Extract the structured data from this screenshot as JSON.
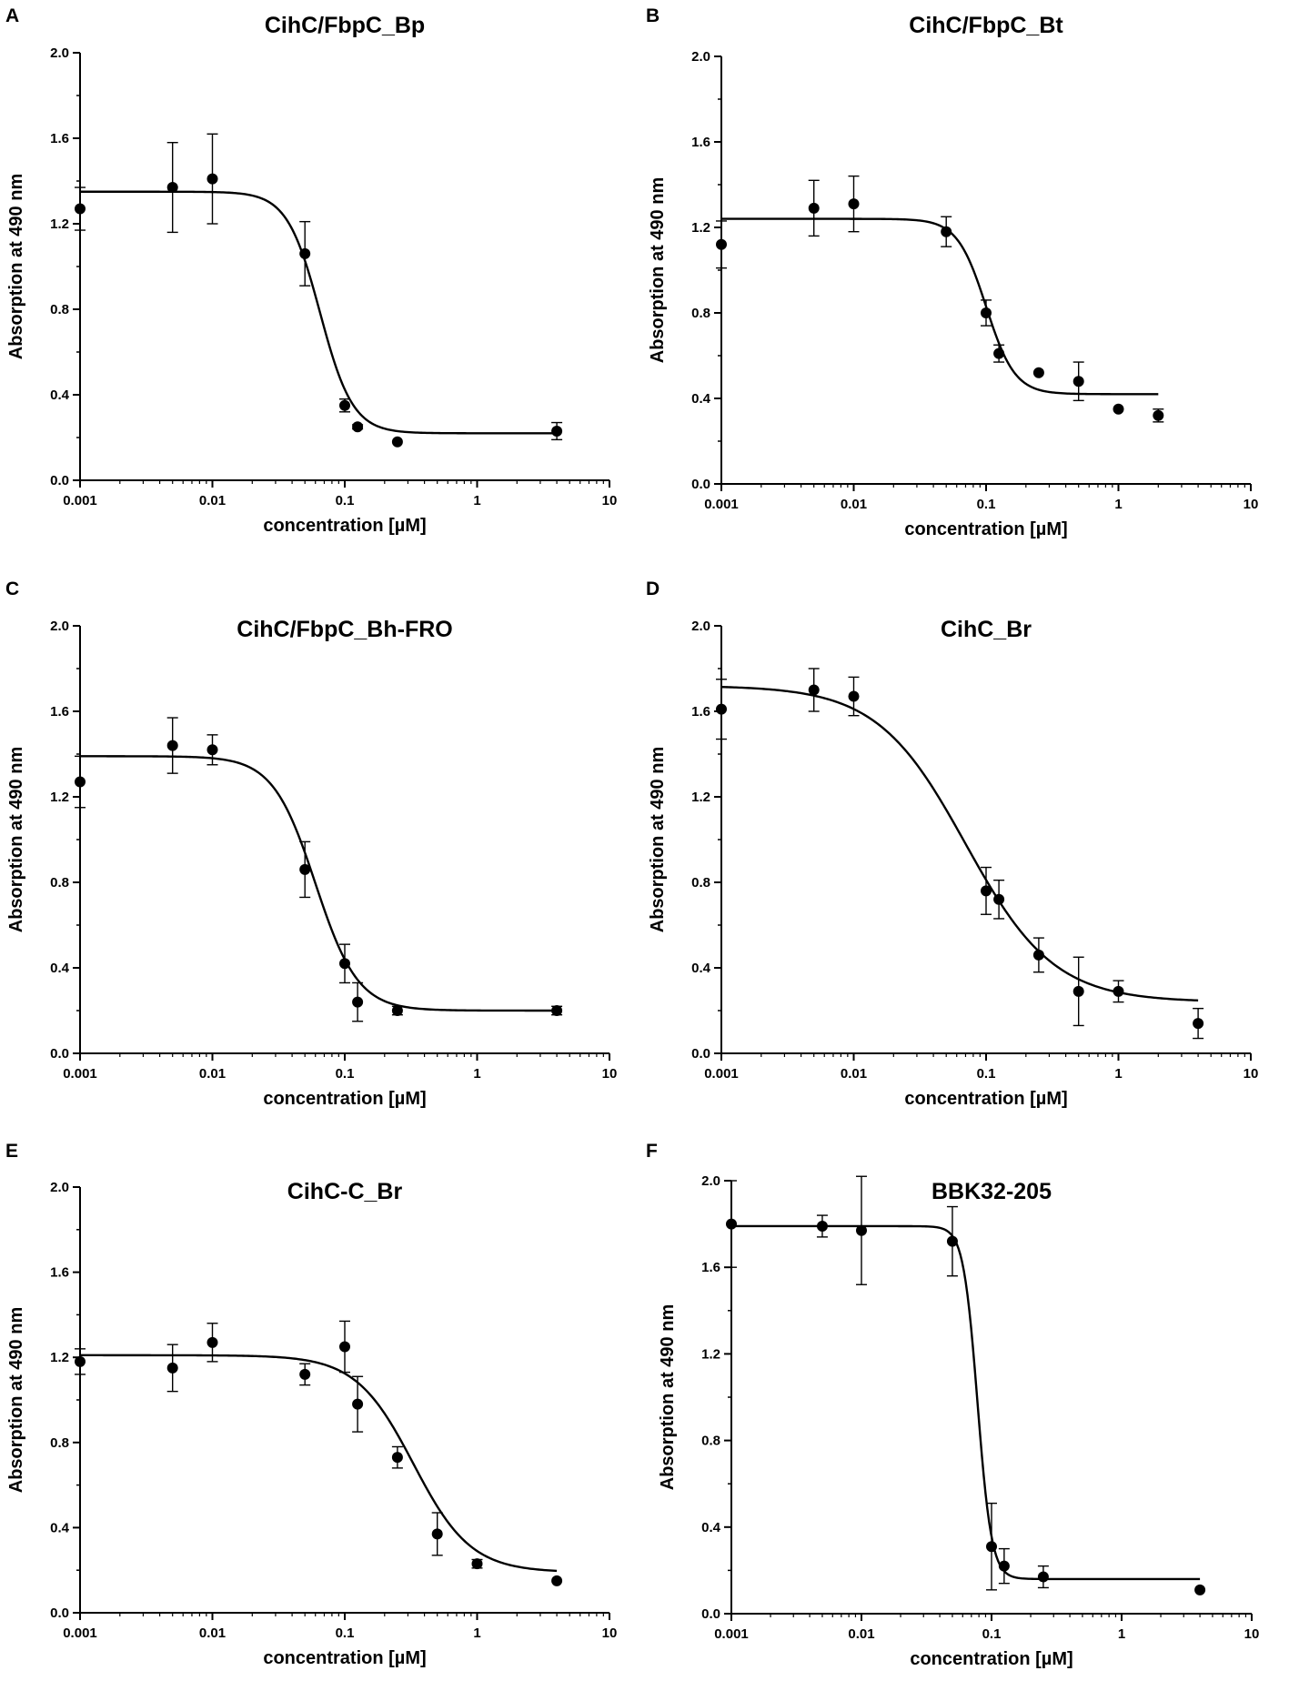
{
  "chart_data": [
    {
      "type": "scatter",
      "panel": "A",
      "title": "CihC/FbpC_Bp",
      "xlabel": "concentration [µM]",
      "ylabel": "Absorption at 490 nm",
      "xscale": "log",
      "xlim": [
        0.001,
        10
      ],
      "ylim": [
        0.0,
        2.0
      ],
      "x_ticks": [
        0.001,
        0.01,
        0.1,
        1,
        10
      ],
      "x_tick_labels": [
        "0.001",
        "0.01",
        "0.1",
        "1",
        "10"
      ],
      "y_ticks": [
        0.0,
        0.4,
        0.8,
        1.2,
        1.6,
        2.0
      ],
      "y_tick_labels": [
        "0.0",
        "0.4",
        "0.8",
        "1.2",
        "1.6",
        "2.0"
      ],
      "points": [
        {
          "x": 0.001,
          "y": 1.27,
          "err": 0.1
        },
        {
          "x": 0.005,
          "y": 1.37,
          "err": 0.21
        },
        {
          "x": 0.01,
          "y": 1.41,
          "err": 0.21
        },
        {
          "x": 0.05,
          "y": 1.06,
          "err": 0.15
        },
        {
          "x": 0.1,
          "y": 0.35,
          "err": 0.03
        },
        {
          "x": 0.125,
          "y": 0.25,
          "err": 0.01
        },
        {
          "x": 0.25,
          "y": 0.18,
          "err": 0.0
        },
        {
          "x": 4,
          "y": 0.23,
          "err": 0.04
        }
      ],
      "fit": {
        "bottom": 0.22,
        "top": 1.35,
        "ec50": 0.065,
        "hill": 3.5,
        "x_range": [
          0.001,
          4
        ]
      }
    },
    {
      "type": "scatter",
      "panel": "B",
      "title": "CihC/FbpC_Bt",
      "xlabel": "concentration [µM]",
      "ylabel": "Absorption at 490 nm",
      "xscale": "log",
      "xlim": [
        0.001,
        10
      ],
      "ylim": [
        0.0,
        2.0
      ],
      "x_ticks": [
        0.001,
        0.01,
        0.1,
        1,
        10
      ],
      "x_tick_labels": [
        "0.001",
        "0.01",
        "0.1",
        "1",
        "10"
      ],
      "y_ticks": [
        0.0,
        0.4,
        0.8,
        1.2,
        1.6,
        2.0
      ],
      "y_tick_labels": [
        "0.0",
        "0.4",
        "0.8",
        "1.2",
        "1.6",
        "2.0"
      ],
      "points": [
        {
          "x": 0.001,
          "y": 1.12,
          "err": 0.11
        },
        {
          "x": 0.005,
          "y": 1.29,
          "err": 0.13
        },
        {
          "x": 0.01,
          "y": 1.31,
          "err": 0.13
        },
        {
          "x": 0.05,
          "y": 1.18,
          "err": 0.07
        },
        {
          "x": 0.1,
          "y": 0.8,
          "err": 0.06
        },
        {
          "x": 0.125,
          "y": 0.61,
          "err": 0.04
        },
        {
          "x": 0.25,
          "y": 0.52,
          "err": 0.0
        },
        {
          "x": 0.5,
          "y": 0.48,
          "err": 0.09
        },
        {
          "x": 1,
          "y": 0.35,
          "err": 0.0
        },
        {
          "x": 2,
          "y": 0.32,
          "err": 0.03
        }
      ],
      "fit": {
        "bottom": 0.42,
        "top": 1.24,
        "ec50": 0.1,
        "hill": 4.0,
        "x_range": [
          0.001,
          2
        ]
      }
    },
    {
      "type": "scatter",
      "panel": "C",
      "title": "CihC/FbpC_Bh-FRO",
      "xlabel": "concentration [µM]",
      "ylabel": "Absorption at 490 nm",
      "xscale": "log",
      "xlim": [
        0.001,
        10
      ],
      "ylim": [
        0.0,
        2.0
      ],
      "x_ticks": [
        0.001,
        0.01,
        0.1,
        1,
        10
      ],
      "x_tick_labels": [
        "0.001",
        "0.01",
        "0.1",
        "1",
        "10"
      ],
      "y_ticks": [
        0.0,
        0.4,
        0.8,
        1.2,
        1.6,
        2.0
      ],
      "y_tick_labels": [
        "0.0",
        "0.4",
        "0.8",
        "1.2",
        "1.6",
        "2.0"
      ],
      "points": [
        {
          "x": 0.001,
          "y": 1.27,
          "err": 0.12
        },
        {
          "x": 0.005,
          "y": 1.44,
          "err": 0.13
        },
        {
          "x": 0.01,
          "y": 1.42,
          "err": 0.07
        },
        {
          "x": 0.05,
          "y": 0.86,
          "err": 0.13
        },
        {
          "x": 0.1,
          "y": 0.42,
          "err": 0.09
        },
        {
          "x": 0.125,
          "y": 0.24,
          "err": 0.09
        },
        {
          "x": 0.25,
          "y": 0.2,
          "err": 0.02
        },
        {
          "x": 4,
          "y": 0.2,
          "err": 0.02
        }
      ],
      "fit": {
        "bottom": 0.2,
        "top": 1.39,
        "ec50": 0.06,
        "hill": 2.7,
        "x_range": [
          0.001,
          4
        ]
      }
    },
    {
      "type": "scatter",
      "panel": "D",
      "title": "CihC_Br",
      "xlabel": "concentration [µM]",
      "ylabel": "Absorption at 490 nm",
      "xscale": "log",
      "xlim": [
        0.001,
        10
      ],
      "ylim": [
        0.0,
        2.0
      ],
      "x_ticks": [
        0.001,
        0.01,
        0.1,
        1,
        10
      ],
      "x_tick_labels": [
        "0.001",
        "0.01",
        "0.1",
        "1",
        "10"
      ],
      "y_ticks": [
        0.0,
        0.4,
        0.8,
        1.2,
        1.6,
        2.0
      ],
      "y_tick_labels": [
        "0.0",
        "0.4",
        "0.8",
        "1.2",
        "1.6",
        "2.0"
      ],
      "points": [
        {
          "x": 0.001,
          "y": 1.61,
          "err": 0.14
        },
        {
          "x": 0.005,
          "y": 1.7,
          "err": 0.1
        },
        {
          "x": 0.01,
          "y": 1.67,
          "err": 0.09
        },
        {
          "x": 0.1,
          "y": 0.76,
          "err": 0.11
        },
        {
          "x": 0.125,
          "y": 0.72,
          "err": 0.09
        },
        {
          "x": 0.25,
          "y": 0.46,
          "err": 0.08
        },
        {
          "x": 0.5,
          "y": 0.29,
          "err": 0.16
        },
        {
          "x": 1,
          "y": 0.29,
          "err": 0.05
        },
        {
          "x": 4,
          "y": 0.14,
          "err": 0.07
        }
      ],
      "fit": {
        "bottom": 0.24,
        "top": 1.72,
        "ec50": 0.07,
        "hill": 1.3,
        "x_range": [
          0.001,
          4
        ]
      }
    },
    {
      "type": "scatter",
      "panel": "E",
      "title": "CihC-C_Br",
      "xlabel": "concentration [µM]",
      "ylabel": "Absorption at 490 nm",
      "xscale": "log",
      "xlim": [
        0.001,
        10
      ],
      "ylim": [
        0.0,
        2.0
      ],
      "x_ticks": [
        0.001,
        0.01,
        0.1,
        1,
        10
      ],
      "x_tick_labels": [
        "0.001",
        "0.01",
        "0.1",
        "1",
        "10"
      ],
      "y_ticks": [
        0.0,
        0.4,
        0.8,
        1.2,
        1.6,
        2.0
      ],
      "y_tick_labels": [
        "0.0",
        "0.4",
        "0.8",
        "1.2",
        "1.6",
        "2.0"
      ],
      "points": [
        {
          "x": 0.001,
          "y": 1.18,
          "err": 0.06
        },
        {
          "x": 0.005,
          "y": 1.15,
          "err": 0.11
        },
        {
          "x": 0.01,
          "y": 1.27,
          "err": 0.09
        },
        {
          "x": 0.05,
          "y": 1.12,
          "err": 0.05
        },
        {
          "x": 0.1,
          "y": 1.25,
          "err": 0.12
        },
        {
          "x": 0.125,
          "y": 0.98,
          "err": 0.13
        },
        {
          "x": 0.25,
          "y": 0.73,
          "err": 0.05
        },
        {
          "x": 0.5,
          "y": 0.37,
          "err": 0.1
        },
        {
          "x": 1,
          "y": 0.23,
          "err": 0.02
        },
        {
          "x": 4,
          "y": 0.15,
          "err": 0.0
        }
      ],
      "fit": {
        "bottom": 0.19,
        "top": 1.21,
        "ec50": 0.33,
        "hill": 2.0,
        "x_range": [
          0.001,
          4
        ]
      }
    },
    {
      "type": "scatter",
      "panel": "F",
      "title": "BBK32-205",
      "xlabel": "concentration [µM]",
      "ylabel": "Absorption at 490 nm",
      "xscale": "log",
      "xlim": [
        0.001,
        10
      ],
      "ylim": [
        0.0,
        2.0
      ],
      "x_ticks": [
        0.001,
        0.01,
        0.1,
        1,
        10
      ],
      "x_tick_labels": [
        "0.001",
        "0.01",
        "0.1",
        "1",
        "10"
      ],
      "y_ticks": [
        0.0,
        0.4,
        0.8,
        1.2,
        1.6,
        2.0
      ],
      "y_tick_labels": [
        "0.0",
        "0.4",
        "0.8",
        "1.2",
        "1.6",
        "2.0"
      ],
      "points": [
        {
          "x": 0.001,
          "y": 1.8,
          "err": 0.2
        },
        {
          "x": 0.005,
          "y": 1.79,
          "err": 0.05
        },
        {
          "x": 0.01,
          "y": 1.77,
          "err": 0.25
        },
        {
          "x": 0.05,
          "y": 1.72,
          "err": 0.16
        },
        {
          "x": 0.1,
          "y": 0.31,
          "err": 0.2
        },
        {
          "x": 0.125,
          "y": 0.22,
          "err": 0.08
        },
        {
          "x": 0.25,
          "y": 0.17,
          "err": 0.05
        },
        {
          "x": 4,
          "y": 0.11,
          "err": 0.0
        }
      ],
      "fit": {
        "bottom": 0.16,
        "top": 1.79,
        "ec50": 0.078,
        "hill": 8.0,
        "x_range": [
          0.001,
          4
        ]
      }
    }
  ]
}
